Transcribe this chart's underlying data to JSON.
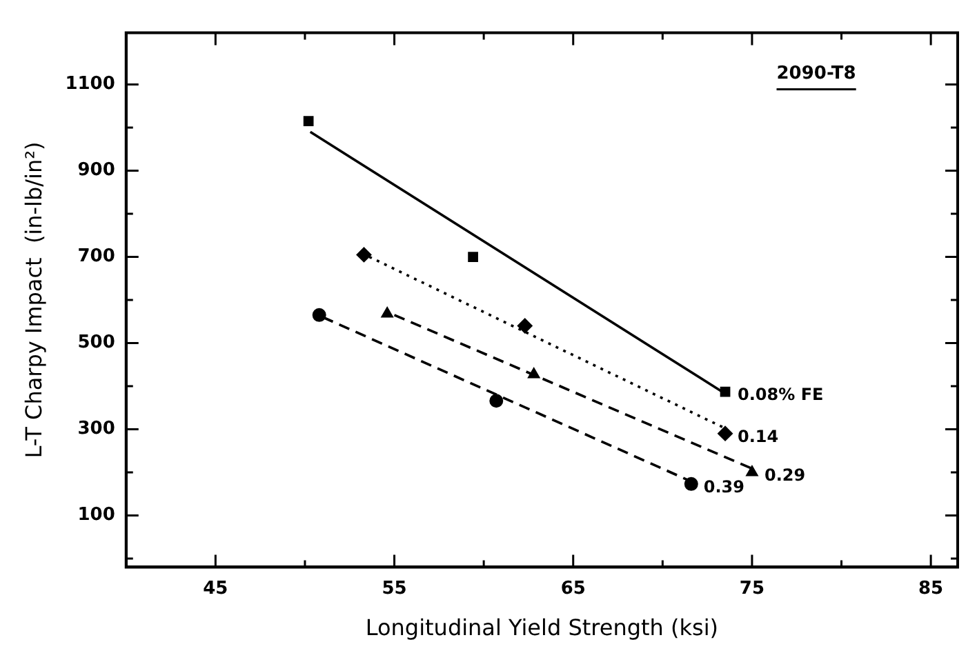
{
  "chart_data": {
    "type": "scatter",
    "xlabel": "Longitudinal Yield Strength (ksi)",
    "ylabel": "L-T Charpy Impact  (in-lb/in²)",
    "annotations": [
      "2090-T8"
    ],
    "xlim": [
      40,
      86.5
    ],
    "ylim": [
      -20,
      1220
    ],
    "xticks": [
      45,
      {
        "value": 50,
        "label": null
      },
      55,
      {
        "value": 60,
        "label": null
      },
      65,
      {
        "value": 70,
        "label": null
      },
      75,
      {
        "value": 80,
        "label": null
      },
      85
    ],
    "yticks": [
      {
        "value": 0,
        "label": null
      },
      100,
      {
        "value": 200,
        "label": null
      },
      300,
      {
        "value": 400,
        "label": null
      },
      500,
      {
        "value": 600,
        "label": null
      },
      700,
      {
        "value": 800,
        "label": null
      },
      900,
      {
        "value": 1000,
        "label": null
      },
      1100
    ],
    "grid": false,
    "legend": false,
    "series": [
      {
        "name": "0.08% FE",
        "marker": "square",
        "color": "#000000",
        "x": [
          50.2,
          59.4,
          73.5
        ],
        "values": [
          1015,
          700,
          387
        ]
      },
      {
        "name": "0.14",
        "marker": "diamond",
        "color": "#000000",
        "x": [
          53.3,
          62.3,
          73.5
        ],
        "values": [
          705,
          540,
          290
        ]
      },
      {
        "name": "0.29",
        "marker": "triangle",
        "color": "#000000",
        "x": [
          54.6,
          62.8,
          75.0
        ],
        "values": [
          568,
          427,
          200
        ]
      },
      {
        "name": "0.39",
        "marker": "circle",
        "color": "#000000",
        "x": [
          50.8,
          60.7,
          71.6
        ],
        "values": [
          565,
          366,
          173
        ]
      },
      {
        "type": "line",
        "line_style": "solid",
        "marker": "none",
        "color": "#000000",
        "x": [
          50.3,
          73.6
        ],
        "values": [
          990,
          380
        ]
      },
      {
        "type": "line",
        "line_style": "dotted",
        "marker": "none",
        "color": "#000000",
        "x": [
          53.6,
          73.6
        ],
        "values": [
          700,
          300
        ]
      },
      {
        "type": "line",
        "line_style": "dashed",
        "marker": "none",
        "color": "#000000",
        "x": [
          55.0,
          75.2
        ],
        "values": [
          565,
          205
        ]
      },
      {
        "type": "line",
        "line_style": "dashed",
        "marker": "none",
        "color": "#000000",
        "x": [
          51.0,
          71.8
        ],
        "values": [
          560,
          175
        ]
      }
    ]
  }
}
